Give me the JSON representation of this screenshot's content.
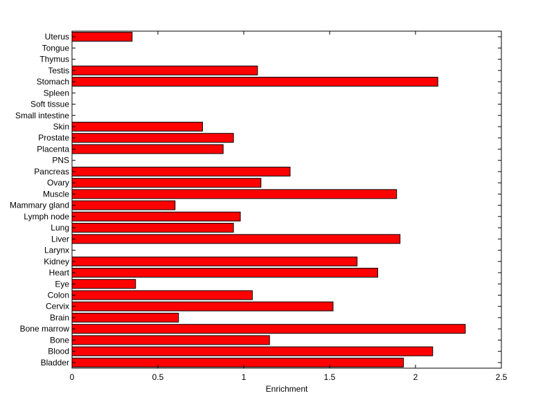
{
  "chart_data": {
    "type": "bar",
    "orientation": "horizontal",
    "xlabel": "Enrichment",
    "ylabel": "",
    "title": "",
    "xlim": [
      0,
      2.5
    ],
    "xticks": [
      "0",
      "0.5",
      "1",
      "1.5",
      "2",
      "2.5"
    ],
    "grid": false,
    "bar_color": "#ff0000",
    "categories": [
      "Uterus",
      "Tongue",
      "Thymus",
      "Testis",
      "Stomach",
      "Spleen",
      "Soft tissue",
      "Small intestine",
      "Skin",
      "Prostate",
      "Placenta",
      "PNS",
      "Pancreas",
      "Ovary",
      "Muscle",
      "Mammary gland",
      "Lymph node",
      "Lung",
      "Liver",
      "Larynx",
      "Kidney",
      "Heart",
      "Eye",
      "Colon",
      "Cervix",
      "Brain",
      "Bone marrow",
      "Bone",
      "Blood",
      "Bladder"
    ],
    "values": [
      0.35,
      0,
      0,
      1.08,
      2.13,
      0,
      0,
      0,
      0.76,
      0.94,
      0.88,
      0,
      1.27,
      1.1,
      1.89,
      0.6,
      0.98,
      0.94,
      1.91,
      0,
      1.66,
      1.78,
      0.37,
      1.05,
      1.52,
      0.62,
      2.29,
      1.15,
      2.1,
      1.93
    ]
  }
}
